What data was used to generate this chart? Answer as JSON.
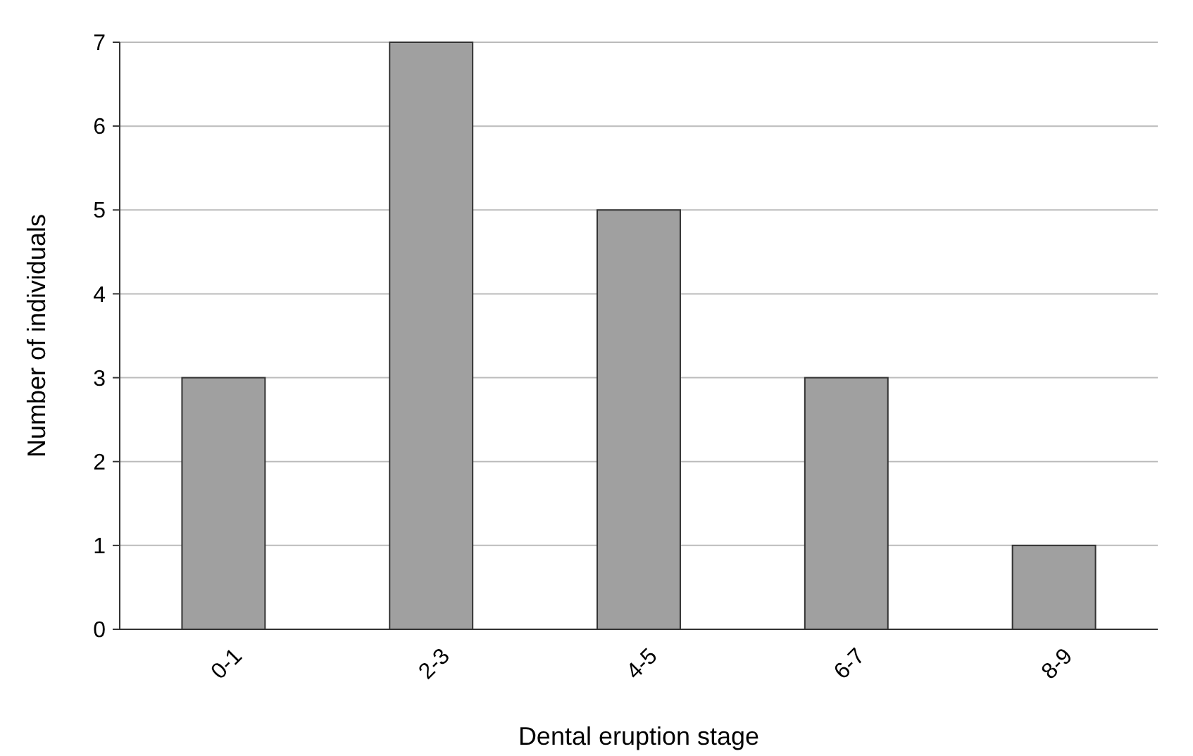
{
  "chart_data": {
    "type": "bar",
    "xlabel": "Dental eruption stage",
    "ylabel": "Number of individuals",
    "categories": [
      "0-1",
      "2-3",
      "4-5",
      "6-7",
      "8-9"
    ],
    "values": [
      3,
      7,
      5,
      3,
      1
    ],
    "color": "#a0a0a0",
    "ylim": [
      0,
      7
    ],
    "yticks": [
      0,
      1,
      2,
      3,
      4,
      5,
      6,
      7
    ],
    "grid": "y"
  }
}
